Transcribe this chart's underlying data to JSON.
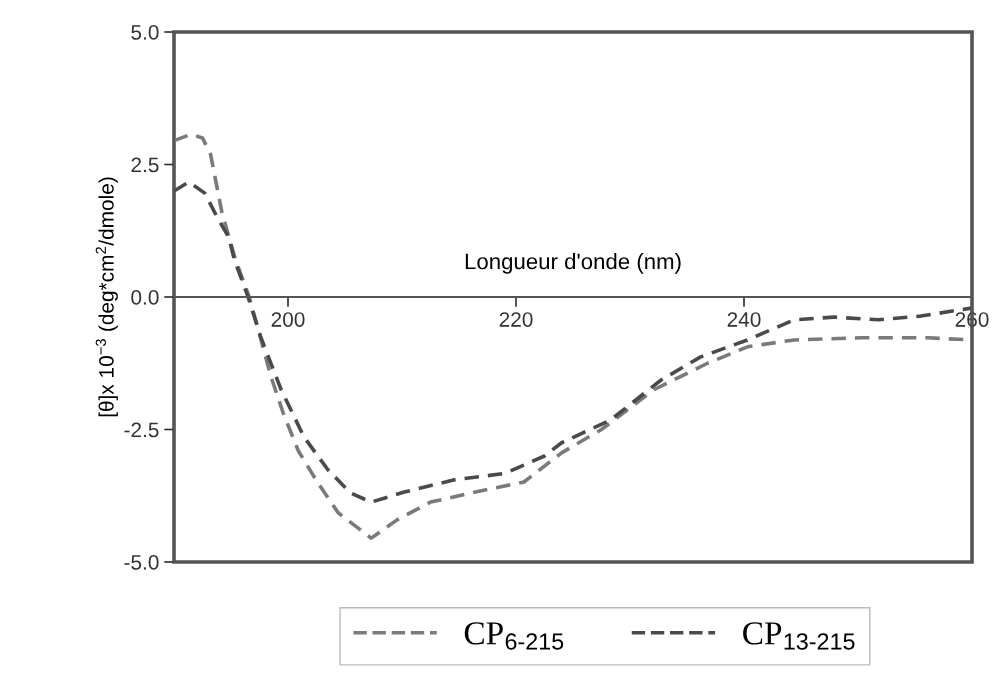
{
  "chart_data": {
    "type": "line",
    "xlabel": "Longueur d'onde (nm)",
    "ylabel": "[θ]x 10$^{−3}$ (deg*cm$^{2}$/dmole)",
    "xlim": [
      190,
      260
    ],
    "xticks": [
      200,
      220,
      240,
      260
    ],
    "ylim": [
      -5.0,
      5.0
    ],
    "yticks": [
      {
        "value": 5.0,
        "label": "5.0"
      },
      {
        "value": 2.5,
        "label": "2.5"
      },
      {
        "value": 0.0,
        "label": "0.0"
      },
      {
        "value": -2.5,
        "label": "-2.5"
      },
      {
        "value": -5.0,
        "label": "-5.0"
      }
    ],
    "grid": false,
    "legend": "bottom",
    "marker": "none",
    "line_style": "dashed",
    "series": [
      {
        "name": "CP$_{6-215}$",
        "color": "#7a7a7a",
        "x": [
          190,
          191.5,
          192.5,
          193.2,
          194.2,
          195.4,
          196.6,
          197.4,
          198.5,
          199.6,
          200.9,
          202.6,
          204.4,
          207.3,
          209.6,
          212.5,
          216,
          220.7,
          224,
          227.5,
          232.1,
          236.8,
          240.3,
          244.4,
          250.3,
          256.1,
          259.9
        ],
        "values": [
          2.95,
          3.07,
          3.0,
          2.7,
          1.6,
          0.7,
          0.0,
          -0.62,
          -1.5,
          -2.2,
          -2.9,
          -3.5,
          -4.07,
          -4.55,
          -4.2,
          -3.87,
          -3.7,
          -3.49,
          -2.94,
          -2.5,
          -1.75,
          -1.25,
          -0.94,
          -0.81,
          -0.77,
          -0.77,
          -0.81
        ]
      },
      {
        "name": "CP$_{13-215}$",
        "color": "#4a4a4a",
        "x": [
          190,
          191.3,
          192.7,
          193.8,
          194.8,
          195.3,
          196.5,
          197.6,
          199.4,
          201.4,
          203.5,
          205.5,
          207.3,
          210.2,
          214.6,
          219,
          222.5,
          224,
          228.3,
          232.7,
          236.2,
          240.3,
          244.4,
          247.9,
          251.8,
          255.5,
          259.9
        ],
        "values": [
          2.0,
          2.17,
          1.96,
          1.5,
          1.13,
          0.7,
          0.0,
          -0.75,
          -1.75,
          -2.64,
          -3.26,
          -3.7,
          -3.87,
          -3.68,
          -3.45,
          -3.33,
          -3.0,
          -2.75,
          -2.32,
          -1.57,
          -1.13,
          -0.81,
          -0.43,
          -0.38,
          -0.43,
          -0.36,
          -0.21
        ]
      }
    ]
  }
}
